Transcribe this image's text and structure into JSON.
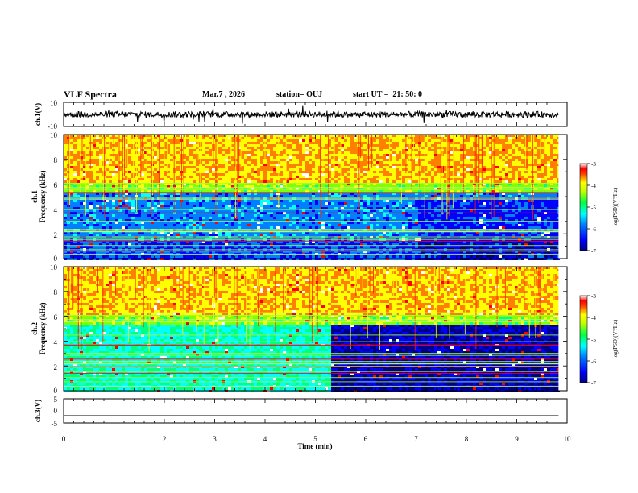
{
  "header": {
    "title": "VLF Spectra",
    "date": "Mar.7 , 2026",
    "station": "station= OUJ",
    "start": "start UT =  21: 50: 0"
  },
  "chart_data": [
    {
      "type": "line",
      "panel": "waveform-ch1",
      "ylabel": "ch.1(V)",
      "ylim": [
        -10,
        10
      ],
      "yticks": [
        "10",
        "-10"
      ],
      "baseline": 0,
      "x_end": 9.83
    },
    {
      "type": "heatmap",
      "panel": "spectrogram-ch1",
      "ylabel": "ch.1\nFrequency (kHz)",
      "ylim": [
        0,
        10
      ],
      "yticks": [
        "0",
        "2",
        "4",
        "6",
        "8",
        "10"
      ],
      "colorbar": {
        "label": "log(PSD)(V²/Hz)",
        "ticks": [
          "-3",
          "-4",
          "-5",
          "-6",
          "-7"
        ],
        "range": [
          -7,
          -3
        ]
      },
      "x_end": 9.83
    },
    {
      "type": "heatmap",
      "panel": "spectrogram-ch2",
      "ylabel": "ch.2\nFrequency (kHz)",
      "ylim": [
        0,
        10
      ],
      "yticks": [
        "0",
        "2",
        "4",
        "6",
        "8",
        "10"
      ],
      "colorbar": {
        "label": "log(PSD)(V²/Hz)",
        "ticks": [
          "-3",
          "-4",
          "-5",
          "-6",
          "-7"
        ],
        "range": [
          -7,
          -3
        ]
      },
      "change_time": 5.3,
      "x_end": 9.83
    },
    {
      "type": "line",
      "panel": "waveform-ch3",
      "ylabel": "ch.3(V)",
      "ylim": [
        -5,
        5
      ],
      "yticks": [
        "5",
        "0",
        "-5"
      ],
      "baseline": -2.1,
      "x_end": 9.83
    }
  ],
  "xaxis": {
    "label": "Time (min)",
    "range": [
      0,
      10
    ],
    "ticks": [
      "0",
      "1",
      "2",
      "3",
      "4",
      "5",
      "6",
      "7",
      "8",
      "9",
      "10"
    ]
  },
  "colors": {
    "colormap": [
      "#000080",
      "#0000ff",
      "#0080ff",
      "#00ffff",
      "#00ff80",
      "#80ff00",
      "#ffff00",
      "#ff8000",
      "#ff0000",
      "#ffffff"
    ],
    "line": "#000000"
  }
}
